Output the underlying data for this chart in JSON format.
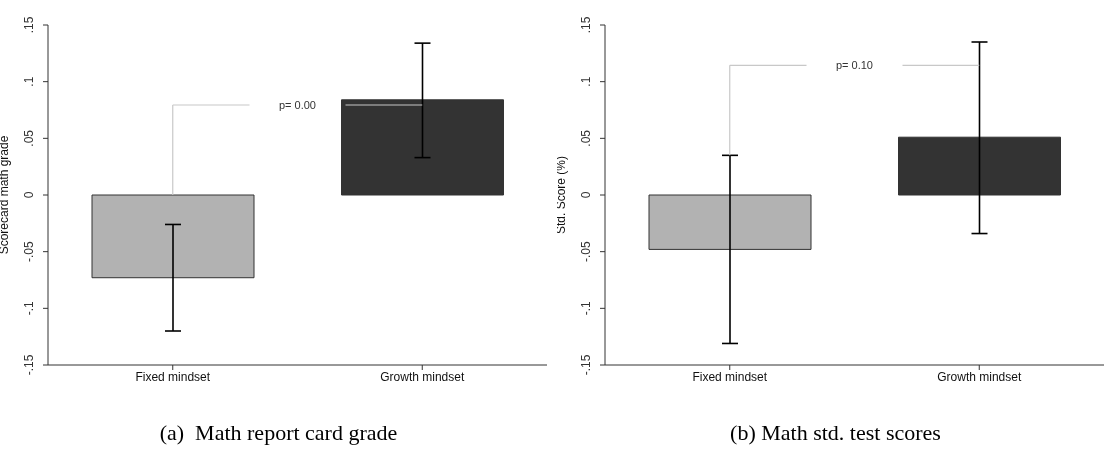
{
  "chart_data": [
    {
      "type": "bar",
      "categories": [
        "Fixed mindset",
        "Growth mindset"
      ],
      "values": [
        -0.073,
        0.084
      ],
      "colors": [
        "#b2b2b2",
        "#333333"
      ],
      "errors": [
        [
          -0.12,
          -0.026
        ],
        [
          0.033,
          0.134
        ]
      ],
      "ylabel": "Scorecard math grade",
      "ylim": [
        -0.15,
        0.15
      ],
      "yticks": [
        {
          "value": -0.15,
          "label": "-.15"
        },
        {
          "value": -0.1,
          "label": "-.1"
        },
        {
          "value": -0.05,
          "label": "-.05"
        },
        0,
        {
          "value": 0.05,
          "label": ".05"
        },
        {
          "value": 0.1,
          "label": ".1"
        },
        {
          "value": 0.15,
          "label": ".15"
        }
      ],
      "annotations": [
        "p= 0.00",
        "(a)  Math report card grade"
      ]
    },
    {
      "type": "bar",
      "categories": [
        "Fixed mindset",
        "Growth mindset"
      ],
      "values": [
        -0.048,
        0.051
      ],
      "colors": [
        "#b2b2b2",
        "#333333"
      ],
      "errors": [
        [
          -0.131,
          0.035
        ],
        [
          -0.034,
          0.135
        ]
      ],
      "ylabel": "Std. Score (%)",
      "ylim": [
        -0.15,
        0.15
      ],
      "yticks": [
        {
          "value": -0.15,
          "label": "-.15"
        },
        {
          "value": -0.1,
          "label": "-.1"
        },
        {
          "value": -0.05,
          "label": "-.05"
        },
        0,
        {
          "value": 0.05,
          "label": ".05"
        },
        {
          "value": 0.1,
          "label": ".1"
        },
        {
          "value": 0.15,
          "label": ".15"
        }
      ],
      "annotations": [
        "p= 0.10",
        "(b) Math std. test scores"
      ]
    }
  ]
}
